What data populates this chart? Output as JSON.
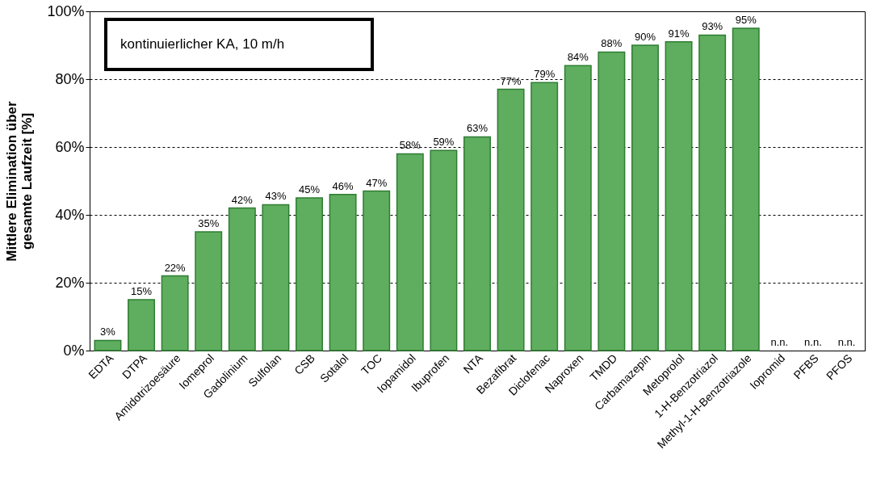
{
  "chart_data": {
    "type": "bar",
    "ylabel": "Mittlere Elimination über\ngesamte Laufzeit    [%]",
    "categories": [
      "EDTA",
      "DTPA",
      "Amidotrizoesäure",
      "Iomeprol",
      "Gadolinium",
      "Sulfolan",
      "CSB",
      "Sotalol",
      "TOC",
      "Iopamidol",
      "Ibuprofen",
      "NTA",
      "Bezafibrat",
      "Diclofenac",
      "Naproxen",
      "TMDD",
      "Carbamazepin",
      "Metoprolol",
      "1-H-Benzotriazol",
      "Methyl-1-H-Benzotriazole",
      "Iopromid",
      "PFBS",
      "PFOS"
    ],
    "values": [
      3,
      15,
      22,
      35,
      42,
      43,
      45,
      46,
      47,
      58,
      59,
      63,
      77,
      79,
      84,
      88,
      90,
      91,
      93,
      95,
      null,
      null,
      null
    ],
    "value_labels": [
      "3%",
      "15%",
      "22%",
      "35%",
      "42%",
      "43%",
      "45%",
      "46%",
      "47%",
      "58%",
      "59%",
      "63%",
      "77%",
      "79%",
      "84%",
      "88%",
      "90%",
      "91%",
      "93%",
      "95%",
      "n.n.",
      "n.n.",
      "n.n."
    ],
    "color": "#5fae5f",
    "ylim": [
      0,
      100
    ],
    "yticks": [
      {
        "value": 0,
        "label": "0%"
      },
      {
        "value": 20,
        "label": "20%"
      },
      {
        "value": 40,
        "label": "40%"
      },
      {
        "value": 60,
        "label": "60%"
      },
      {
        "value": 80,
        "label": "80%"
      },
      {
        "value": 100,
        "label": "100%"
      }
    ],
    "grid": "y",
    "line_style": "dotted",
    "annotations": [
      "kontinuierlicher KA, 10 m/h"
    ]
  }
}
